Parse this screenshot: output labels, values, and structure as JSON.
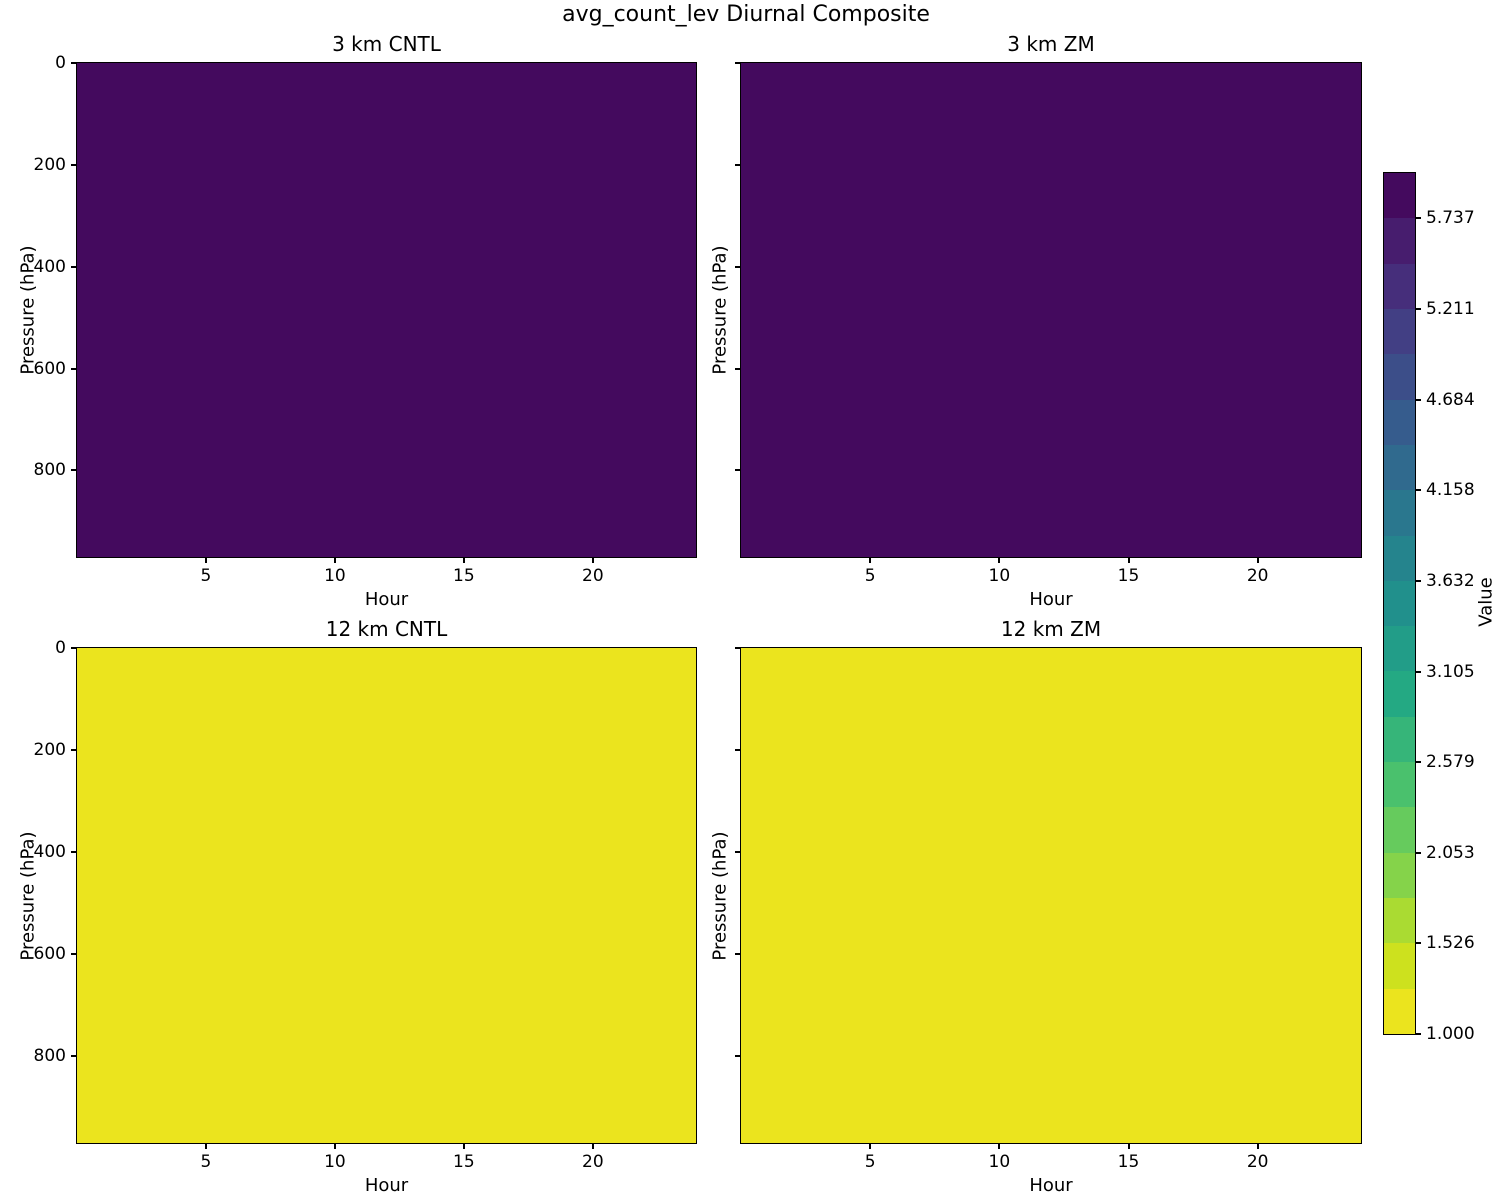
{
  "figure": {
    "title": "avg_count_lev Diurnal Composite",
    "background_color": "#ffffff",
    "text_color": "#000000"
  },
  "chart_data": {
    "type": "heatmap",
    "layout": "2x2 grid of uniform-valued heatmap panels with shared colorbar",
    "title": "avg_count_lev Diurnal Composite",
    "x_axis": {
      "label": "Hour",
      "ticks": [
        5,
        10,
        15,
        20
      ],
      "range": [
        0,
        24
      ]
    },
    "y_axis": {
      "label": "Pressure (hPa)",
      "ticks": [
        0,
        200,
        400,
        600,
        800
      ],
      "range": [
        0,
        970
      ],
      "inverted": true
    },
    "panels": [
      {
        "title": "3 km CNTL",
        "uniform_value": 6.0,
        "fill_color": "#440a5e",
        "y_tick_labels_visible": true
      },
      {
        "title": "3 km ZM",
        "uniform_value": 6.0,
        "fill_color": "#440a5e",
        "y_tick_labels_visible": false
      },
      {
        "title": "12 km CNTL",
        "uniform_value": 1.0,
        "fill_color": "#ebe41e",
        "y_tick_labels_visible": true
      },
      {
        "title": "12 km ZM",
        "uniform_value": 1.0,
        "fill_color": "#ebe41e",
        "y_tick_labels_visible": false
      }
    ],
    "colorbar": {
      "label": "Value",
      "range": [
        1.0,
        6.0
      ],
      "n_segments": 19,
      "colormap": "viridis reversed (yellow = low, dark purple = high)",
      "tick_labels": [
        "5.737",
        "5.211",
        "4.684",
        "4.158",
        "3.632",
        "3.105",
        "2.579",
        "2.053",
        "1.526",
        "1.000"
      ],
      "tick_values": [
        5.737,
        5.211,
        4.684,
        4.158,
        3.632,
        3.105,
        2.579,
        2.053,
        1.526,
        1.0
      ],
      "segment_colors_bottom_to_top": [
        "#ebe41e",
        "#cde11e",
        "#aadb32",
        "#85d34a",
        "#66cb5d",
        "#4ac16d",
        "#36b579",
        "#24a983",
        "#229d88",
        "#21908c",
        "#25848d",
        "#2a778e",
        "#306a8e",
        "#365c8d",
        "#3c4e89",
        "#423f84",
        "#462e7b",
        "#471d6e",
        "#440a5e"
      ]
    }
  }
}
